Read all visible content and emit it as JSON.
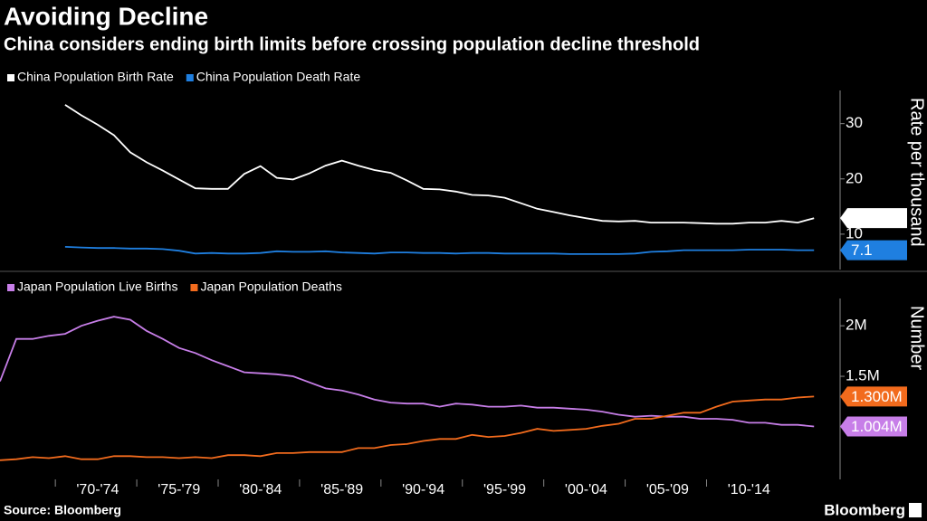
{
  "title": "Avoiding Decline",
  "subtitle": "China considers ending birth limits before crossing population decline threshold",
  "source": "Source: Bloomberg",
  "brand": "Bloomberg",
  "chart_data": [
    {
      "type": "line",
      "y_label": "Rate per thousand",
      "x": [
        1970,
        1971,
        1972,
        1973,
        1974,
        1975,
        1976,
        1977,
        1978,
        1979,
        1980,
        1981,
        1982,
        1983,
        1984,
        1985,
        1986,
        1987,
        1988,
        1989,
        1990,
        1991,
        1992,
        1993,
        1994,
        1995,
        1996,
        1997,
        1998,
        1999,
        2000,
        2001,
        2002,
        2003,
        2004,
        2005,
        2006,
        2007,
        2008,
        2009,
        2010,
        2011,
        2012,
        2013,
        2014,
        2015,
        2016
      ],
      "xlim": [
        1966,
        2016.6
      ],
      "ylim": [
        3.6,
        36
      ],
      "yticks": [
        10,
        20,
        30
      ],
      "series": [
        {
          "name": "China Population Birth Rate",
          "color": "#ffffff",
          "values": [
            33.4,
            31.5,
            29.8,
            27.9,
            24.8,
            23.0,
            21.5,
            19.9,
            18.3,
            18.2,
            18.2,
            20.9,
            22.3,
            20.2,
            19.9,
            21.0,
            22.4,
            23.3,
            22.4,
            21.6,
            21.1,
            19.7,
            18.2,
            18.1,
            17.7,
            17.1,
            17.0,
            16.6,
            15.6,
            14.6,
            14.0,
            13.4,
            12.9,
            12.4,
            12.3,
            12.4,
            12.1,
            12.1,
            12.1,
            12.0,
            11.9,
            11.9,
            12.1,
            12.1,
            12.4,
            12.1,
            12.9
          ]
        },
        {
          "name": "China Population Death Rate",
          "color": "#1f7fe0",
          "values": [
            7.7,
            7.6,
            7.5,
            7.5,
            7.4,
            7.4,
            7.3,
            7.0,
            6.5,
            6.6,
            6.5,
            6.5,
            6.6,
            6.9,
            6.8,
            6.8,
            6.9,
            6.7,
            6.6,
            6.5,
            6.7,
            6.7,
            6.6,
            6.6,
            6.5,
            6.6,
            6.6,
            6.5,
            6.5,
            6.5,
            6.5,
            6.4,
            6.4,
            6.4,
            6.4,
            6.5,
            6.8,
            6.9,
            7.1,
            7.1,
            7.1,
            7.1,
            7.2,
            7.2,
            7.2,
            7.1,
            7.1
          ]
        }
      ]
    },
    {
      "type": "line",
      "y_label": "Number",
      "x": [
        1966,
        1967,
        1968,
        1969,
        1970,
        1971,
        1972,
        1973,
        1974,
        1975,
        1976,
        1977,
        1978,
        1979,
        1980,
        1981,
        1982,
        1983,
        1984,
        1985,
        1986,
        1987,
        1988,
        1989,
        1990,
        1991,
        1992,
        1993,
        1994,
        1995,
        1996,
        1997,
        1998,
        1999,
        2000,
        2001,
        2002,
        2003,
        2004,
        2005,
        2006,
        2007,
        2008,
        2009,
        2010,
        2011,
        2012,
        2013,
        2014,
        2015,
        2016
      ],
      "xlim": [
        1966,
        2016.6
      ],
      "ylim": [
        480000,
        2270000
      ],
      "yticks": [
        {
          "value": 1500000,
          "label": "1.5M"
        },
        {
          "value": 2000000,
          "label": "2M"
        }
      ],
      "xticks": [
        {
          "value": 1972,
          "label": "'70-'74"
        },
        {
          "value": 1977,
          "label": "'75-'79"
        },
        {
          "value": 1982,
          "label": "'80-'84"
        },
        {
          "value": 1987,
          "label": "'85-'89"
        },
        {
          "value": 1992,
          "label": "'90-'94"
        },
        {
          "value": 1997,
          "label": "'95-'99"
        },
        {
          "value": 2002,
          "label": "'00-'04"
        },
        {
          "value": 2007,
          "label": "'05-'09"
        },
        {
          "value": 2012,
          "label": "'10-'14"
        }
      ],
      "series": [
        {
          "name": "Japan Population Live Births",
          "color": "#c77ee8",
          "values": [
            1450000,
            1870000,
            1870000,
            1900000,
            1920000,
            2000000,
            2050000,
            2090000,
            2060000,
            1950000,
            1870000,
            1780000,
            1730000,
            1660000,
            1600000,
            1540000,
            1530000,
            1520000,
            1500000,
            1440000,
            1380000,
            1360000,
            1320000,
            1270000,
            1240000,
            1230000,
            1230000,
            1200000,
            1230000,
            1220000,
            1200000,
            1200000,
            1210000,
            1190000,
            1190000,
            1180000,
            1170000,
            1150000,
            1120000,
            1100000,
            1110000,
            1100000,
            1100000,
            1080000,
            1080000,
            1070000,
            1040000,
            1040000,
            1020000,
            1020000,
            1004000
          ],
          "value_labels": [
            null,
            null,
            null,
            null,
            null,
            null,
            null,
            null,
            null,
            null,
            null,
            null,
            null,
            null,
            null,
            null,
            null,
            null,
            null,
            null,
            null,
            null,
            null,
            null,
            null,
            null,
            null,
            null,
            null,
            null,
            null,
            null,
            null,
            null,
            null,
            null,
            null,
            null,
            null,
            null,
            null,
            null,
            null,
            null,
            null,
            null,
            null,
            null,
            null,
            null,
            "1.004M"
          ]
        },
        {
          "name": "Japan Population Deaths",
          "color": "#f26b1d",
          "values": [
            670000,
            680000,
            700000,
            690000,
            710000,
            680000,
            680000,
            710000,
            710000,
            700000,
            700000,
            690000,
            700000,
            690000,
            720000,
            720000,
            710000,
            740000,
            740000,
            750000,
            750000,
            750000,
            790000,
            790000,
            820000,
            830000,
            860000,
            880000,
            880000,
            920000,
            900000,
            910000,
            940000,
            980000,
            960000,
            970000,
            980000,
            1010000,
            1030000,
            1080000,
            1080000,
            1110000,
            1140000,
            1140000,
            1200000,
            1250000,
            1260000,
            1270000,
            1270000,
            1290000,
            1300000
          ],
          "value_labels": [
            null,
            null,
            null,
            null,
            null,
            null,
            null,
            null,
            null,
            null,
            null,
            null,
            null,
            null,
            null,
            null,
            null,
            null,
            null,
            null,
            null,
            null,
            null,
            null,
            null,
            null,
            null,
            null,
            null,
            null,
            null,
            null,
            null,
            null,
            null,
            null,
            null,
            null,
            null,
            null,
            null,
            null,
            null,
            null,
            null,
            null,
            null,
            null,
            null,
            null,
            "1.300M"
          ]
        }
      ]
    }
  ]
}
